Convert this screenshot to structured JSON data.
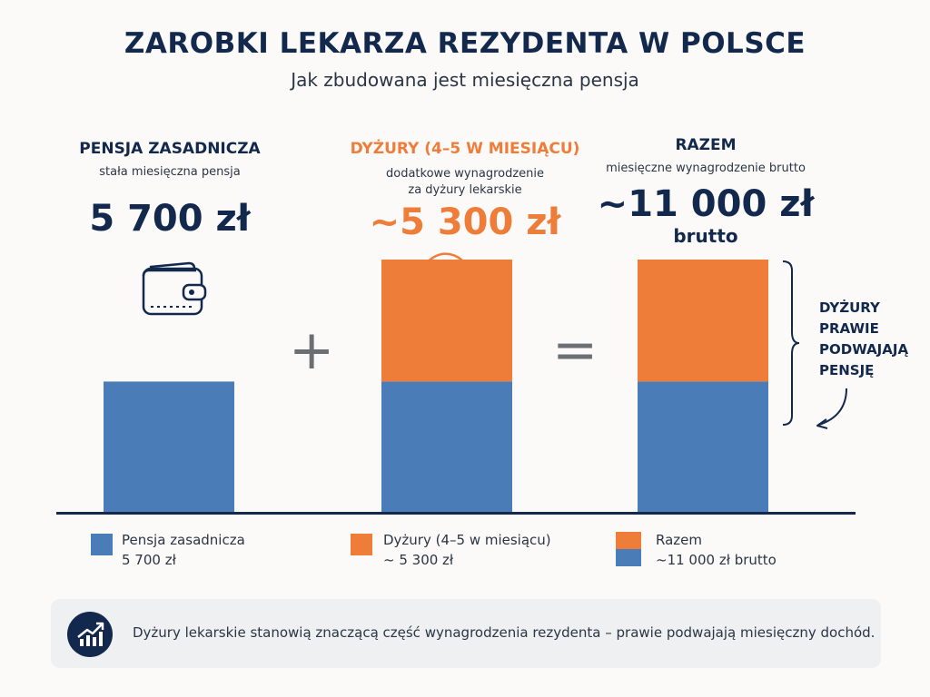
{
  "header": {
    "title": "ZAROBKI LEKARZA REZYDENTA W POLSCE",
    "subtitle": "Jak zbudowana jest miesięczna pensja"
  },
  "columns": {
    "base": {
      "heading": "PENSJA ZASADNICZA",
      "description": "stała miesięczna pensja",
      "value": "5 700 zł",
      "icon": "wallet-icon"
    },
    "shifts": {
      "heading": "DYŻURY (4–5 W MIESIĄCU)",
      "description_line1": "dodatkowe wynagrodzenie",
      "description_line2": "za dyżury lekarskie",
      "value": "~5 300 zł",
      "icon": "clock-plus-icon"
    },
    "total": {
      "heading": "RAZEM",
      "description": "miesięczne wynagrodzenie brutto",
      "value": "~11 000 zł",
      "value_suffix": "brutto"
    }
  },
  "operators": {
    "plus": "+",
    "equals": "="
  },
  "annotation": {
    "lines": [
      "DYŻURY",
      "PRAWIE",
      "PODWAJAJĄ",
      "PENSJĘ"
    ]
  },
  "legend": [
    {
      "label": "Pensja zasadnicza",
      "value": "5 700 zł",
      "colors": [
        "#4a7db8"
      ]
    },
    {
      "label": "Dyżury (4–5 w miesiącu)",
      "value": "~ 5 300 zł",
      "colors": [
        "#ef7d3a"
      ]
    },
    {
      "label": "Razem",
      "value": "~11 000 zł brutto",
      "colors": [
        "#ef7d3a",
        "#4a7db8"
      ]
    }
  ],
  "note": {
    "text": "Dyżury lekarskie stanowią znaczącą część wynagrodzenia rezydenta – prawie podwajają miesięczny dochód.",
    "icon": "trend-up-chart-icon"
  },
  "colors": {
    "base": "#4a7db8",
    "shifts": "#ef7d3a",
    "navy": "#12294d"
  },
  "chart_data": {
    "type": "bar",
    "categories": [
      "Pensja zasadnicza",
      "Dyżury (4–5 w miesiącu)",
      "Razem"
    ],
    "series": [
      {
        "name": "Pensja zasadnicza",
        "color": "#4a7db8",
        "values": [
          5700,
          5700,
          5700
        ]
      },
      {
        "name": "Dyżury (4–5 w miesiącu)",
        "color": "#ef7d3a",
        "values": [
          0,
          5300,
          5300
        ]
      }
    ],
    "ylim": [
      0,
      11000
    ],
    "grid": false,
    "legend": "bottom"
  }
}
